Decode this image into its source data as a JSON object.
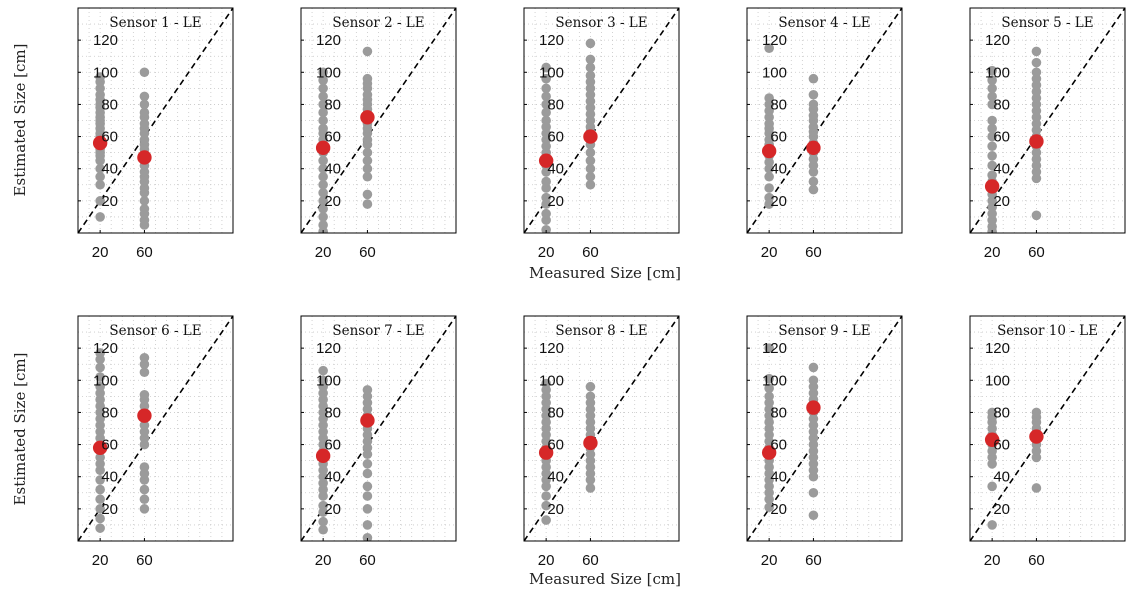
{
  "figure": {
    "ylabel": "Estimated Size [cm]",
    "xlabel": "Measured Size [cm]"
  },
  "colors": {
    "points": "#9b9b9b",
    "mean": "#d62728",
    "diagonal": "#000000",
    "grid": "#c8c8c8"
  },
  "chart_data": [
    {
      "type": "scatter",
      "title": "Sensor 1 - LE",
      "xlim": [
        0,
        140
      ],
      "ylim": [
        0,
        140
      ],
      "xticks": [
        20,
        60
      ],
      "yticks": [
        20,
        40,
        60,
        80,
        100,
        120
      ],
      "grid": true,
      "points": [
        {
          "x": 20,
          "y": [
            10,
            20,
            30,
            35,
            40,
            45,
            48,
            50,
            52,
            55,
            57,
            60,
            62,
            65,
            68,
            70,
            72,
            75,
            78,
            80,
            83,
            86,
            90,
            94,
            97
          ]
        },
        {
          "x": 60,
          "y": [
            5,
            8,
            12,
            15,
            20,
            25,
            28,
            32,
            35,
            38,
            42,
            45,
            48,
            52,
            55,
            58,
            62,
            65,
            68,
            72,
            75,
            80,
            85,
            100
          ]
        }
      ],
      "mean": [
        {
          "x": 20,
          "y": 56
        },
        {
          "x": 60,
          "y": 47
        }
      ]
    },
    {
      "type": "scatter",
      "title": "Sensor 2 - LE",
      "xlim": [
        0,
        140
      ],
      "ylim": [
        0,
        140
      ],
      "xticks": [
        20,
        60
      ],
      "yticks": [
        20,
        40,
        60,
        80,
        100,
        120
      ],
      "grid": true,
      "points": [
        {
          "x": 20,
          "y": [
            1,
            5,
            10,
            15,
            20,
            25,
            30,
            35,
            40,
            45,
            50,
            55,
            58,
            62,
            65,
            70,
            75,
            80,
            85,
            90,
            95,
            100
          ]
        },
        {
          "x": 60,
          "y": [
            18,
            24,
            35,
            40,
            45,
            50,
            55,
            58,
            62,
            65,
            68,
            70,
            74,
            77,
            80,
            83,
            86,
            90,
            93,
            96,
            113
          ]
        }
      ],
      "mean": [
        {
          "x": 20,
          "y": 53
        },
        {
          "x": 60,
          "y": 72
        }
      ]
    },
    {
      "type": "scatter",
      "title": "Sensor 3 - LE",
      "xlim": [
        0,
        140
      ],
      "ylim": [
        0,
        140
      ],
      "xticks": [
        20,
        60
      ],
      "yticks": [
        20,
        40,
        60,
        80,
        100,
        120
      ],
      "grid": true,
      "points": [
        {
          "x": 20,
          "y": [
            2,
            8,
            12,
            18,
            22,
            28,
            32,
            38,
            42,
            46,
            50,
            54,
            58,
            62,
            66,
            70,
            75,
            80,
            85,
            90,
            96,
            103
          ]
        },
        {
          "x": 60,
          "y": [
            30,
            35,
            40,
            45,
            50,
            55,
            60,
            63,
            66,
            70,
            74,
            78,
            82,
            86,
            90,
            94,
            98,
            103,
            108,
            118
          ]
        }
      ],
      "mean": [
        {
          "x": 20,
          "y": 45
        },
        {
          "x": 60,
          "y": 60
        }
      ]
    },
    {
      "type": "scatter",
      "title": "Sensor 4 - LE",
      "xlim": [
        0,
        140
      ],
      "ylim": [
        0,
        140
      ],
      "xticks": [
        20,
        60
      ],
      "yticks": [
        20,
        40,
        60,
        80,
        100,
        120
      ],
      "grid": true,
      "points": [
        {
          "x": 20,
          "y": [
            18,
            22,
            28,
            35,
            40,
            44,
            48,
            52,
            55,
            58,
            62,
            65,
            68,
            72,
            76,
            80,
            84,
            115
          ]
        },
        {
          "x": 60,
          "y": [
            27,
            32,
            38,
            42,
            46,
            50,
            53,
            56,
            60,
            63,
            66,
            70,
            73,
            77,
            80,
            86,
            96
          ]
        }
      ],
      "mean": [
        {
          "x": 20,
          "y": 51
        },
        {
          "x": 60,
          "y": 53
        }
      ]
    },
    {
      "type": "scatter",
      "title": "Sensor 5 - LE",
      "xlim": [
        0,
        140
      ],
      "ylim": [
        0,
        140
      ],
      "xticks": [
        20,
        60
      ],
      "yticks": [
        20,
        40,
        60,
        80,
        100,
        120
      ],
      "grid": true,
      "points": [
        {
          "x": 20,
          "y": [
            1,
            4,
            8,
            12,
            16,
            20,
            24,
            28,
            32,
            36,
            42,
            48,
            54,
            60,
            65,
            70,
            80,
            85,
            90,
            95,
            101
          ]
        },
        {
          "x": 60,
          "y": [
            11,
            34,
            38,
            42,
            46,
            50,
            54,
            57,
            60,
            64,
            68,
            72,
            76,
            80,
            84,
            88,
            92,
            96,
            100,
            106,
            113
          ]
        }
      ],
      "mean": [
        {
          "x": 20,
          "y": 29
        },
        {
          "x": 60,
          "y": 57
        }
      ]
    },
    {
      "type": "scatter",
      "title": "Sensor 6 - LE",
      "xlim": [
        0,
        140
      ],
      "ylim": [
        0,
        140
      ],
      "xticks": [
        20,
        60
      ],
      "yticks": [
        20,
        40,
        60,
        80,
        100,
        120
      ],
      "grid": true,
      "points": [
        {
          "x": 20,
          "y": [
            8,
            14,
            20,
            26,
            32,
            38,
            44,
            48,
            52,
            56,
            60,
            64,
            68,
            72,
            76,
            80,
            84,
            88,
            92,
            96,
            102,
            108,
            113,
            117
          ]
        },
        {
          "x": 60,
          "y": [
            20,
            26,
            32,
            38,
            42,
            46,
            60,
            64,
            68,
            72,
            76,
            80,
            84,
            88,
            91,
            105,
            110,
            114
          ]
        }
      ],
      "mean": [
        {
          "x": 20,
          "y": 58
        },
        {
          "x": 60,
          "y": 78
        }
      ]
    },
    {
      "type": "scatter",
      "title": "Sensor 7 - LE",
      "xlim": [
        0,
        140
      ],
      "ylim": [
        0,
        140
      ],
      "xticks": [
        20,
        60
      ],
      "yticks": [
        20,
        40,
        60,
        80,
        100,
        120
      ],
      "grid": true,
      "points": [
        {
          "x": 20,
          "y": [
            7,
            12,
            18,
            22,
            28,
            32,
            36,
            40,
            44,
            48,
            52,
            56,
            60,
            64,
            68,
            72,
            76,
            80,
            84,
            88,
            92,
            96,
            100,
            106
          ]
        },
        {
          "x": 60,
          "y": [
            2,
            10,
            20,
            28,
            34,
            42,
            48,
            54,
            58,
            62,
            66,
            70,
            74,
            78,
            82,
            86,
            90,
            94
          ]
        }
      ],
      "mean": [
        {
          "x": 20,
          "y": 53
        },
        {
          "x": 60,
          "y": 75
        }
      ]
    },
    {
      "type": "scatter",
      "title": "Sensor 8 - LE",
      "xlim": [
        0,
        140
      ],
      "ylim": [
        0,
        140
      ],
      "xticks": [
        20,
        60
      ],
      "yticks": [
        20,
        40,
        60,
        80,
        100,
        120
      ],
      "grid": true,
      "points": [
        {
          "x": 20,
          "y": [
            13,
            22,
            28,
            34,
            38,
            42,
            46,
            50,
            54,
            58,
            62,
            66,
            70,
            74,
            78,
            82,
            86,
            90,
            94,
            98
          ]
        },
        {
          "x": 60,
          "y": [
            33,
            38,
            42,
            46,
            50,
            54,
            58,
            62,
            66,
            70,
            74,
            78,
            82,
            86,
            90,
            96
          ]
        }
      ],
      "mean": [
        {
          "x": 20,
          "y": 55
        },
        {
          "x": 60,
          "y": 61
        }
      ]
    },
    {
      "type": "scatter",
      "title": "Sensor 9 - LE",
      "xlim": [
        0,
        140
      ],
      "ylim": [
        0,
        140
      ],
      "xticks": [
        20,
        60
      ],
      "yticks": [
        20,
        40,
        60,
        80,
        100,
        120
      ],
      "grid": true,
      "points": [
        {
          "x": 20,
          "y": [
            21,
            26,
            30,
            34,
            38,
            42,
            46,
            50,
            54,
            58,
            62,
            66,
            70,
            74,
            78,
            82,
            86,
            90,
            95,
            101,
            120
          ]
        },
        {
          "x": 60,
          "y": [
            16,
            30,
            40,
            44,
            48,
            52,
            56,
            60,
            64,
            68,
            72,
            76,
            80,
            84,
            88,
            92,
            96,
            100,
            108
          ]
        }
      ],
      "mean": [
        {
          "x": 20,
          "y": 55
        },
        {
          "x": 60,
          "y": 83
        }
      ]
    },
    {
      "type": "scatter",
      "title": "Sensor 10 - LE",
      "xlim": [
        0,
        140
      ],
      "ylim": [
        0,
        140
      ],
      "xticks": [
        20,
        60
      ],
      "yticks": [
        20,
        40,
        60,
        80,
        100,
        120
      ],
      "grid": true,
      "points": [
        {
          "x": 20,
          "y": [
            10,
            34,
            48,
            52,
            56,
            60,
            63,
            66,
            70,
            74,
            77,
            80
          ]
        },
        {
          "x": 60,
          "y": [
            33,
            52,
            56,
            60,
            63,
            66,
            70,
            74,
            77,
            80
          ]
        }
      ],
      "mean": [
        {
          "x": 20,
          "y": 63
        },
        {
          "x": 60,
          "y": 65
        }
      ]
    }
  ]
}
